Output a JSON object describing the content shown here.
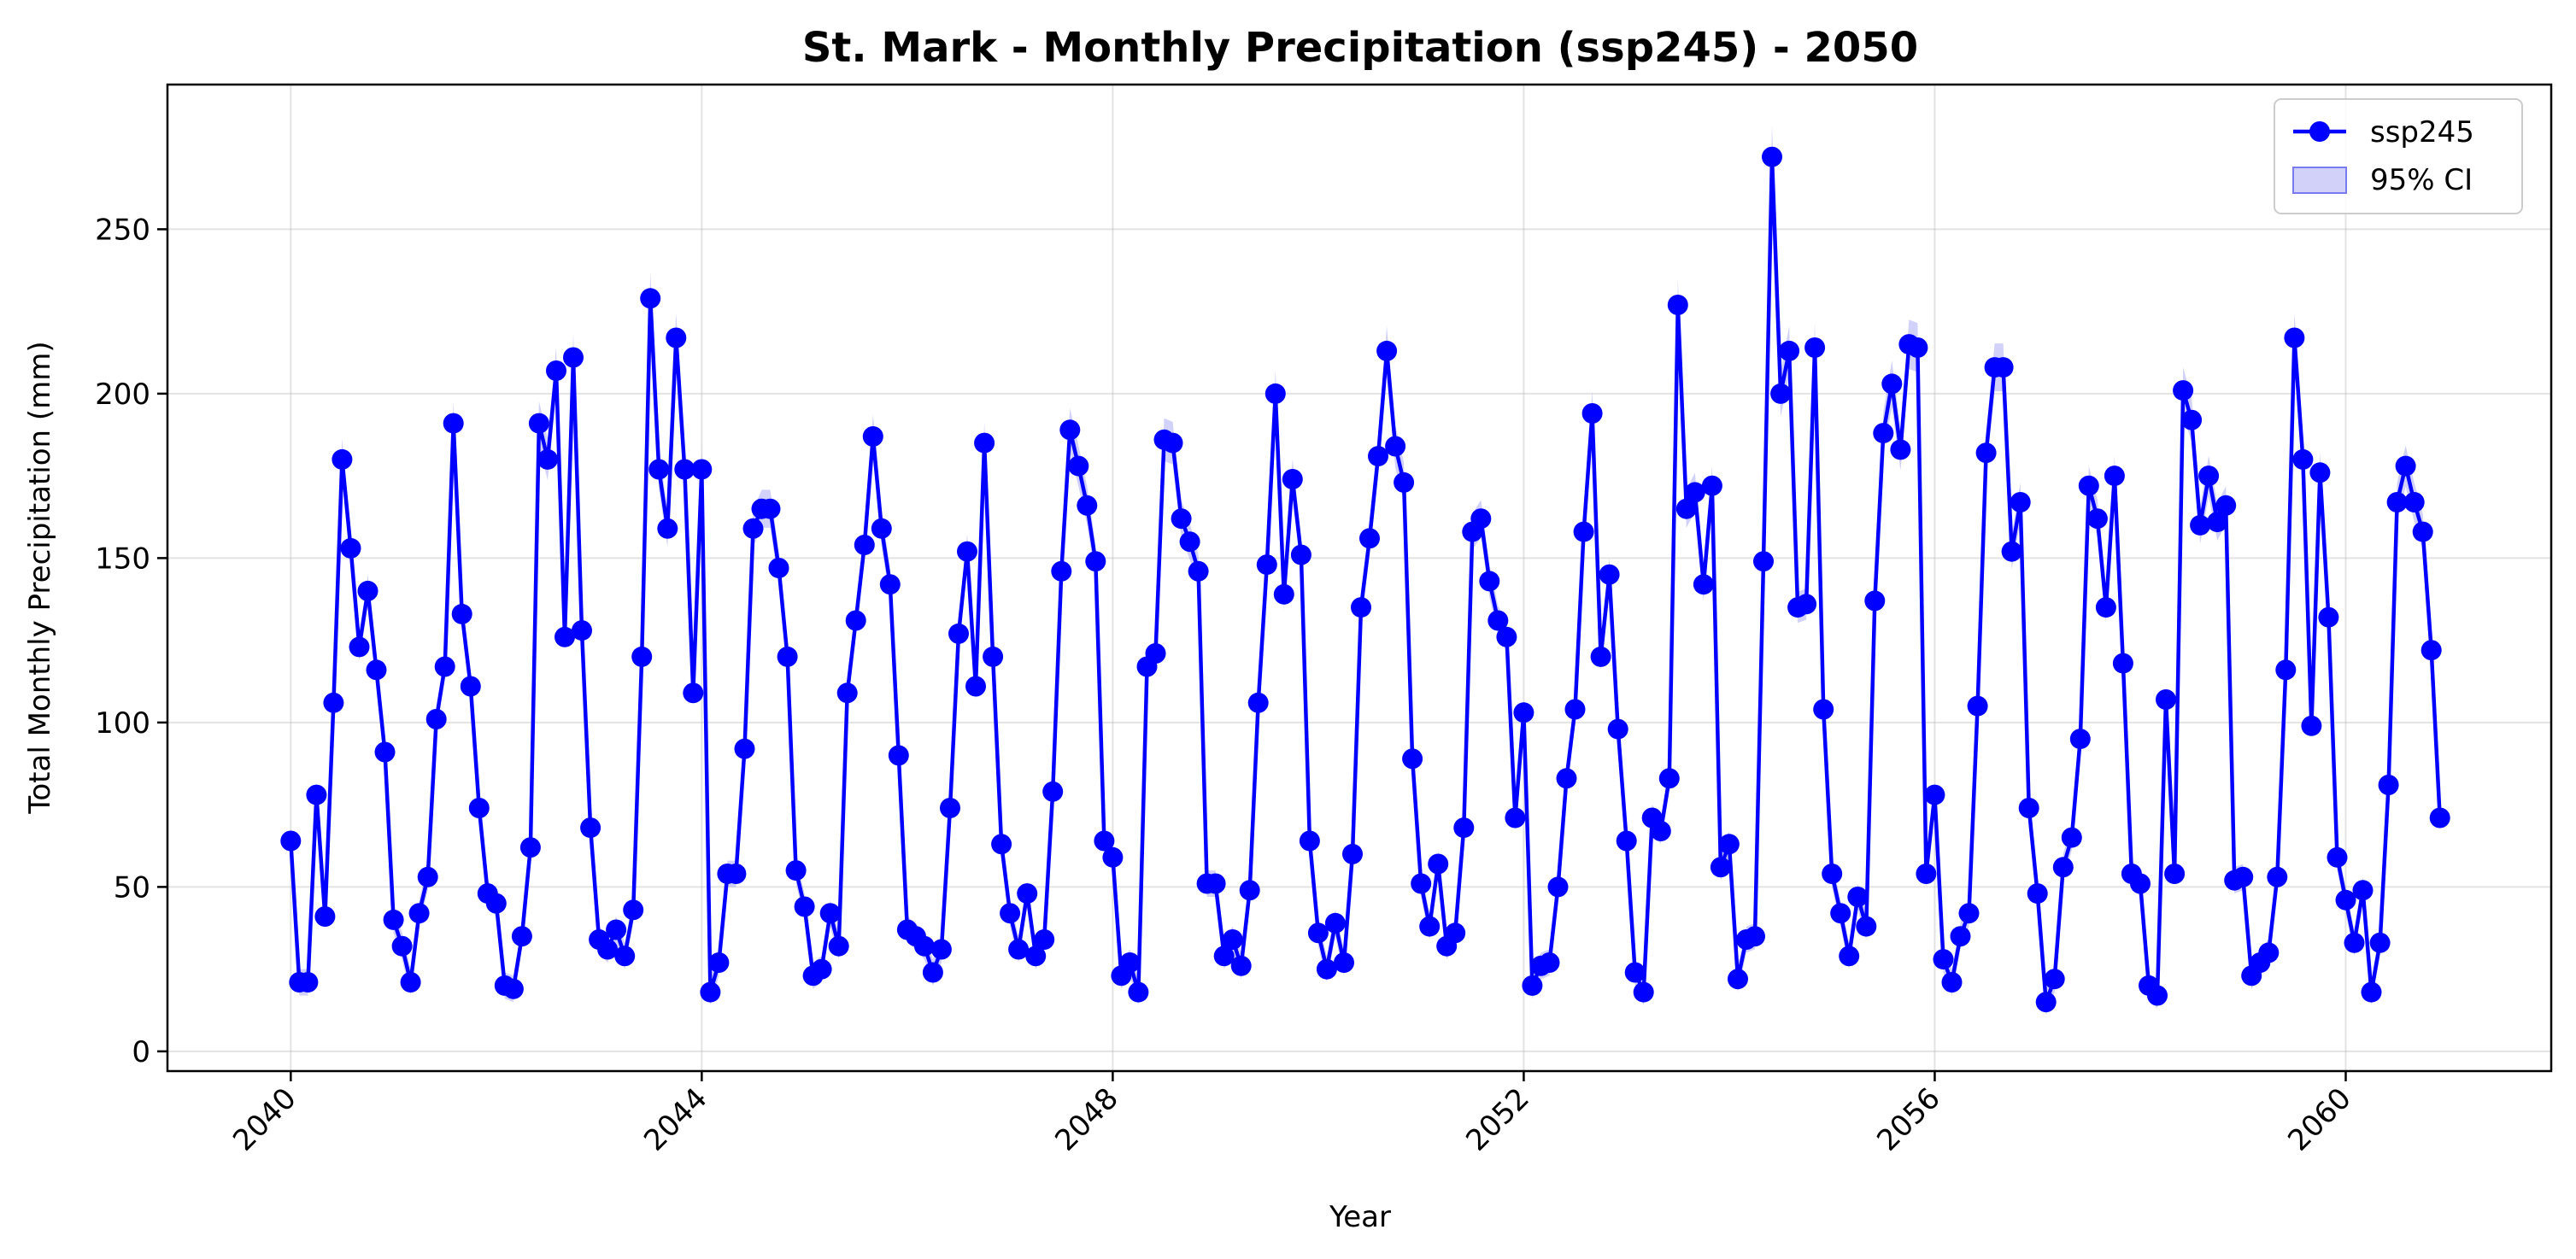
{
  "chart_data": {
    "type": "line",
    "title": "St. Mark - Monthly Precipitation (ssp245) - 2050",
    "xlabel": "Year",
    "ylabel": "Total Monthly Precipitation (mm)",
    "xlim": [
      2038.8,
      2062.0
    ],
    "ylim": [
      -6,
      294
    ],
    "x_ticks": [
      "2040",
      "2044",
      "2048",
      "2052",
      "2056",
      "2060"
    ],
    "y_ticks": [
      "0",
      "50",
      "100",
      "150",
      "200",
      "250"
    ],
    "grid": true,
    "legend_position": "top-right",
    "x_start": "2040-01",
    "series": [
      {
        "name": "ssp245",
        "color": "#0000ff",
        "ci_label": "95% CI",
        "ci_color": "#7b7bf0",
        "values": [
          64,
          21,
          21,
          78,
          41,
          106,
          180,
          153,
          123,
          140,
          116,
          91,
          40,
          32,
          21,
          42,
          53,
          101,
          117,
          191,
          133,
          111,
          74,
          48,
          45,
          20,
          19,
          35,
          62,
          191,
          180,
          207,
          126,
          211,
          128,
          68,
          34,
          31,
          37,
          29,
          43,
          120,
          229,
          177,
          159,
          217,
          177,
          109,
          177,
          18,
          27,
          54,
          54,
          92,
          159,
          165,
          165,
          147,
          120,
          55,
          44,
          23,
          25,
          42,
          32,
          109,
          131,
          154,
          187,
          159,
          142,
          90,
          37,
          35,
          32,
          24,
          31,
          74,
          127,
          152,
          111,
          185,
          120,
          63,
          42,
          31,
          48,
          29,
          34,
          79,
          146,
          189,
          178,
          166,
          149,
          64,
          59,
          23,
          27,
          18,
          117,
          121,
          186,
          185,
          162,
          155,
          146,
          51,
          51,
          29,
          34,
          26,
          49,
          106,
          148,
          200,
          139,
          174,
          151,
          64,
          36,
          25,
          39,
          27,
          60,
          135,
          156,
          181,
          213,
          184,
          173,
          89,
          51,
          38,
          57,
          32,
          36,
          68,
          158,
          162,
          143,
          131,
          126,
          71,
          103,
          20,
          26,
          27,
          50,
          83,
          104,
          158,
          194,
          120,
          145,
          98,
          64,
          24,
          18,
          71,
          67,
          83,
          227,
          165,
          170,
          142,
          172,
          56,
          63,
          22,
          34,
          35,
          149,
          272,
          200,
          213,
          135,
          136,
          214,
          104,
          54,
          42,
          29,
          47,
          38,
          137,
          188,
          203,
          183,
          215,
          214,
          54,
          78,
          28,
          21,
          35,
          42,
          105,
          182,
          208,
          208,
          152,
          167,
          74,
          48,
          15,
          22,
          56,
          65,
          95,
          172,
          162,
          135,
          175,
          118,
          54,
          51,
          20,
          17,
          107,
          54,
          201,
          192,
          160,
          175,
          161,
          166,
          52,
          53,
          23,
          27,
          30,
          53,
          116,
          217,
          180,
          99,
          176,
          132,
          59,
          46,
          33,
          49,
          18,
          33,
          81,
          167,
          178,
          167,
          158,
          122,
          71
        ]
      }
    ]
  }
}
